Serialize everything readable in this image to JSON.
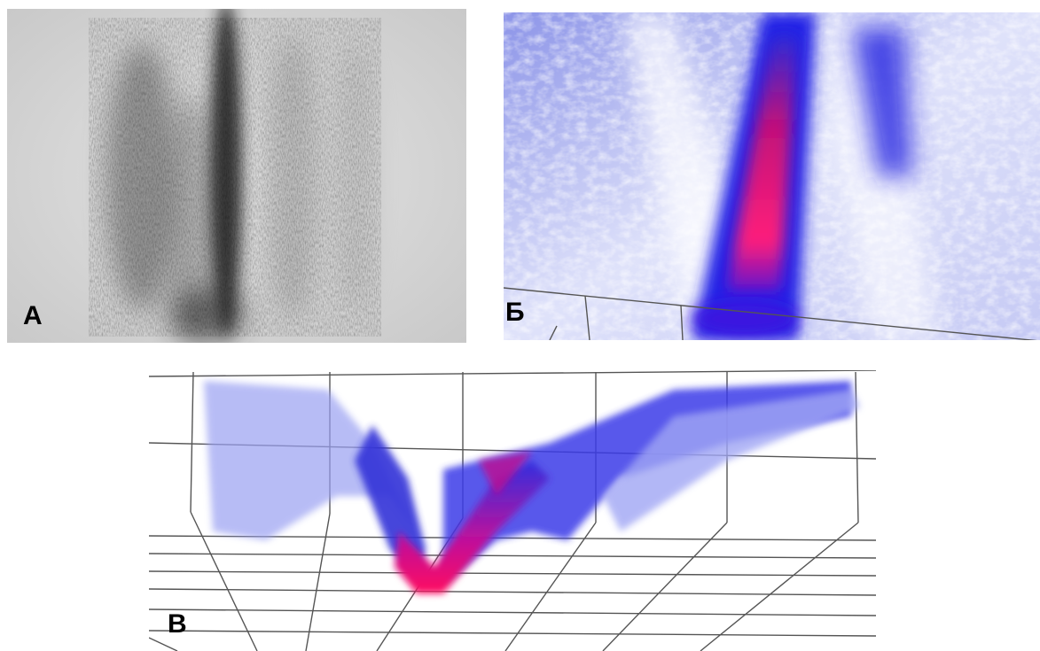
{
  "panels": [
    {
      "label": "А"
    },
    {
      "label": "Б"
    },
    {
      "label": "В"
    }
  ]
}
